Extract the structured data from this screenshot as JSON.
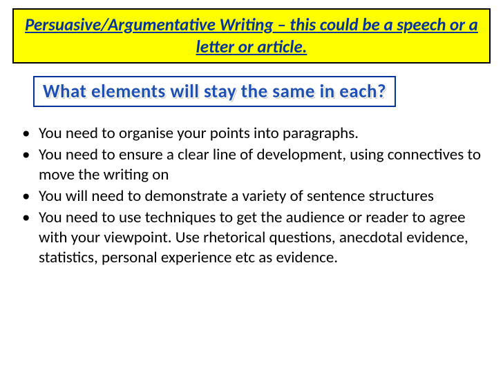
{
  "title": "Persuasive/Argumentative Writing – this could be a speech or a letter or article.",
  "subtitle": "What elements will stay the same in each?",
  "bullets": [
    "You need to organise your points into paragraphs.",
    "You need to ensure a clear line of development, using connectives to move the writing on",
    "You will need to demonstrate a variety of sentence structures",
    "You need to use techniques to get the audience or reader to agree with your viewpoint. Use rhetorical questions, anecdotal evidence, statistics, personal experience etc as evidence."
  ],
  "styles": {
    "slide_width": 728,
    "slide_height": 546,
    "background_color": "#ffffff",
    "title_box": {
      "background_color": "#ffff00",
      "border_color": "#000000",
      "border_width": 2,
      "text_color": "#003399",
      "font_size": 25,
      "font_weight": "bold",
      "font_style": "italic",
      "text_decoration": "underline"
    },
    "subtitle_box": {
      "border_color": "#003399",
      "border_width": 2,
      "background_color": "#ffffff",
      "text_color": "#1f51b5",
      "font_size": 27,
      "font_weight": "bold",
      "shadow_color": "#cccccc"
    },
    "bullets_style": {
      "font_size": 23,
      "text_color": "#000000",
      "bullet_char": "•",
      "line_height": 1.26
    }
  }
}
